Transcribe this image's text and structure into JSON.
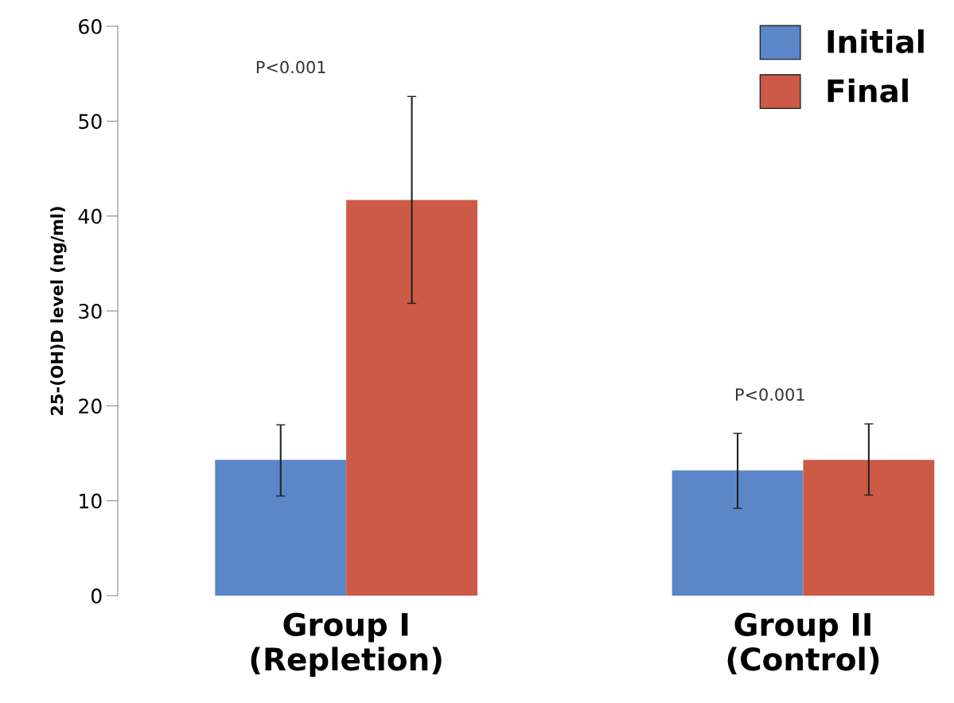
{
  "chart_data": {
    "type": "bar",
    "ylabel": "25-(OH)D level (ng/ml)",
    "categories": [
      "Group I\n(Repletion)",
      "Group II\n(Control)"
    ],
    "series": [
      {
        "name": "Initial",
        "color": "#5b86c8",
        "values": [
          14.3,
          13.2
        ],
        "errors": [
          [
            10.5,
            18.0
          ],
          [
            9.2,
            17.1
          ]
        ]
      },
      {
        "name": "Final",
        "color": "#cc5a46",
        "values": [
          41.7,
          14.3
        ],
        "errors": [
          [
            30.8,
            52.6
          ],
          [
            10.6,
            18.1
          ]
        ]
      }
    ],
    "ylim": [
      0,
      60
    ],
    "yticks": [
      0,
      10,
      20,
      30,
      40,
      50,
      60
    ],
    "annotations": [
      "P<0.001",
      "P<0.001"
    ],
    "grid": false,
    "legend": "top right"
  }
}
